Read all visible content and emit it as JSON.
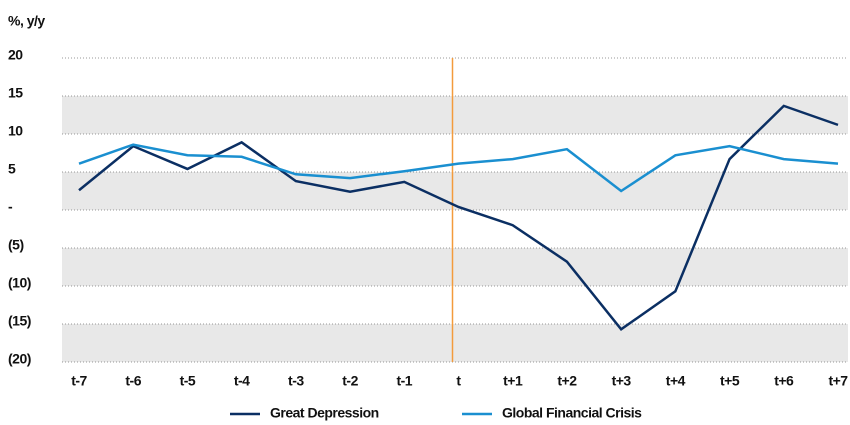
{
  "chart_data": {
    "type": "line",
    "y_axis_label": "%, y/y",
    "categories": [
      "t-7",
      "t-6",
      "t-5",
      "t-4",
      "t-3",
      "t-2",
      "t-1",
      "t",
      "t+1",
      "t+2",
      "t+3",
      "t+4",
      "t+5",
      "t+6",
      "t+7"
    ],
    "series": [
      {
        "name": "Great Depression",
        "color": "#0b2f63",
        "values": [
          2.6,
          8.4,
          5.4,
          8.9,
          3.8,
          2.4,
          3.7,
          0.4,
          -2.0,
          -6.8,
          -15.7,
          -10.7,
          6.7,
          13.7,
          11.2
        ]
      },
      {
        "name": "Global Financial Crisis",
        "color": "#1a8fd0",
        "values": [
          6.1,
          8.6,
          7.2,
          7.0,
          4.7,
          4.2,
          5.1,
          6.1,
          6.7,
          8.0,
          2.5,
          7.2,
          8.4,
          6.7,
          6.1
        ]
      }
    ],
    "ylim": [
      -20,
      20
    ],
    "yticks": [
      20,
      15,
      10,
      5,
      {
        "value": 0,
        "label": "-"
      },
      {
        "value": -5,
        "label": "(5)"
      },
      {
        "value": -10,
        "label": "(10)"
      },
      {
        "value": -15,
        "label": "(15)"
      },
      {
        "value": -20,
        "label": "(20)"
      }
    ],
    "grid": true,
    "banded": true,
    "vline_category": "t",
    "vline_color": "#f39b3c",
    "legend": "bottom"
  }
}
